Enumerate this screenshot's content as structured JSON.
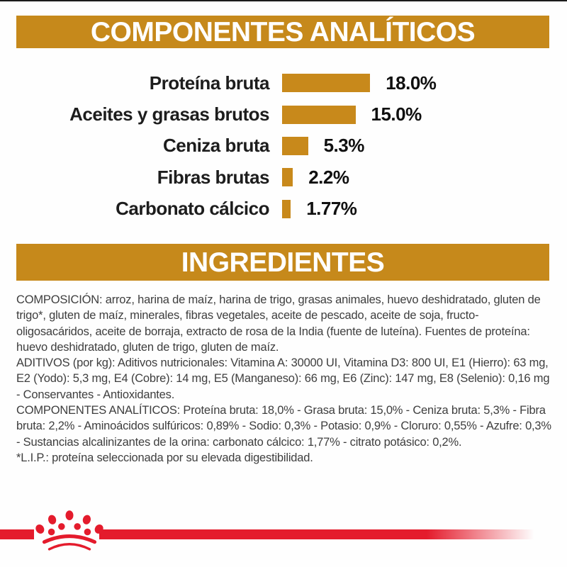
{
  "page": {
    "background": "#ffffff",
    "accent_gold": "#C6891B",
    "brand_red": "#E41B2C",
    "text_color": "#3e3e3e"
  },
  "sections": {
    "analytical": {
      "title": "COMPONENTES ANALÍTICOS"
    },
    "ingredients": {
      "title": "INGREDIENTES"
    }
  },
  "chart_data": {
    "type": "bar",
    "orientation": "horizontal",
    "title": "COMPONENTES ANALÍTICOS",
    "categories": [
      "Proteína bruta",
      "Aceites y grasas brutos",
      "Ceniza bruta",
      "Fibras brutas",
      "Carbonato cálcico"
    ],
    "values": [
      18.0,
      15.0,
      5.3,
      2.2,
      1.77
    ],
    "value_labels": [
      "18.0%",
      "15.0%",
      "5.3%",
      "2.2%",
      "1.77%"
    ],
    "unit": "%",
    "xlim": [
      0,
      18
    ],
    "bar_color": "#C8891B",
    "grid": false,
    "legend": false
  },
  "ingredients_text": {
    "composition": "COMPOSICIÓN: arroz, harina de maíz, harina de trigo, grasas animales, huevo deshidratado, gluten de trigo*, gluten de maíz, minerales, fibras vegetales, aceite de pescado, aceite de soja, fructo-oligosacáridos, aceite de borraja, extracto de rosa de la India (fuente de luteína). Fuentes de proteína: huevo deshidratado, gluten de trigo, gluten de maíz.",
    "additives": "ADITIVOS (por kg): Aditivos nutricionales: Vitamina A: 30000 UI, Vitamina D3: 800 UI, E1 (Hierro): 63 mg, E2 (Yodo): 5,3 mg, E4 (Cobre): 14 mg, E5 (Manganeso): 66 mg, E6 (Zinc): 147 mg, E8 (Selenio): 0,16 mg - Conservantes - Antioxidantes.",
    "analytical_constituents": "COMPONENTES ANALÍTICOS: Proteína bruta: 18,0% - Grasa bruta: 15,0% - Ceniza bruta: 5,3% - Fibra bruta: 2,2% - Aminoácidos sulfúricos: 0,89% - Sodio: 0,3% - Potasio: 0,9% - Cloruro: 0,55% - Azufre: 0,3% - Sustancias alcalinizantes de la orina: carbonato cálcico: 1,77% - citrato potásico: 0,2%.",
    "footnote": "*L.I.P.: proteína seleccionada por su elevada digestibilidad."
  },
  "footer": {
    "logo": "royal-canin-crown"
  }
}
